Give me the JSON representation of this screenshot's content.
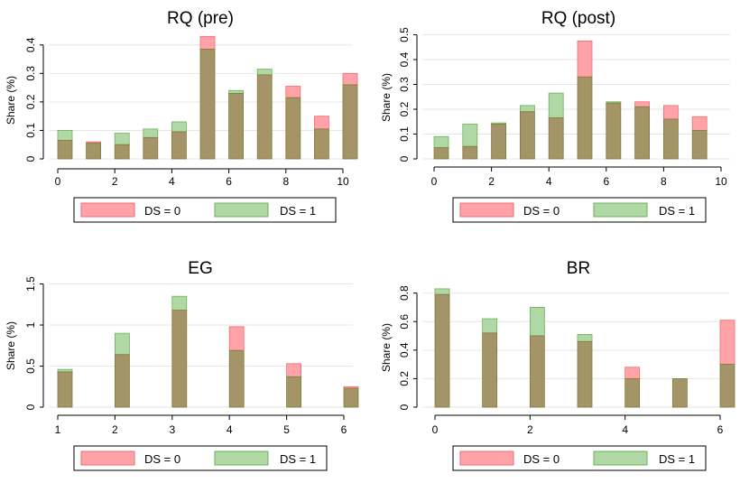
{
  "chart_data": [
    {
      "type": "bar",
      "title": "RQ (pre)",
      "ylabel": "Share (%)",
      "xlabel": "",
      "x": [
        0,
        1,
        2,
        3,
        4,
        5,
        6,
        7,
        8,
        9,
        10
      ],
      "xlim": [
        0,
        10
      ],
      "xticks": [
        0,
        2,
        4,
        6,
        8,
        10
      ],
      "ylim": [
        0,
        0.45
      ],
      "yticks": [
        0,
        0.1,
        0.2,
        0.3,
        0.4
      ],
      "ytick_labels": [
        "0",
        "0.1",
        "0.2",
        "0.3",
        "0.4"
      ],
      "series": [
        {
          "name": "DS = 0",
          "color": "#ffa3a8",
          "values": [
            0.065,
            0.06,
            0.05,
            0.075,
            0.095,
            0.43,
            0.23,
            0.295,
            0.255,
            0.15,
            0.3
          ]
        },
        {
          "name": "DS = 1",
          "color": "#b0d8a4",
          "values": [
            0.1,
            0.055,
            0.09,
            0.105,
            0.13,
            0.385,
            0.24,
            0.315,
            0.215,
            0.105,
            0.26
          ]
        }
      ],
      "legend": "bottom"
    },
    {
      "type": "bar",
      "title": "RQ (post)",
      "ylabel": "Share (%)",
      "xlabel": "",
      "x": [
        0,
        1,
        2,
        3,
        4,
        5,
        6,
        7,
        8,
        9,
        10
      ],
      "xlim": [
        0,
        10
      ],
      "xticks": [
        0,
        2,
        4,
        6,
        8,
        10
      ],
      "ylim": [
        0,
        0.52
      ],
      "yticks": [
        0,
        0.1,
        0.2,
        0.3,
        0.4,
        0.5
      ],
      "ytick_labels": [
        "0",
        "0.1",
        "0.2",
        "0.3",
        "0.4",
        "0.5"
      ],
      "series": [
        {
          "name": "DS = 0",
          "color": "#ffa3a8",
          "values": [
            0.045,
            0.05,
            0.14,
            0.19,
            0.165,
            0.475,
            0.225,
            0.23,
            0.215,
            0.17,
            0.0
          ]
        },
        {
          "name": "DS = 1",
          "color": "#b0d8a4",
          "values": [
            0.09,
            0.14,
            0.145,
            0.215,
            0.265,
            0.33,
            0.23,
            0.21,
            0.16,
            0.115,
            0.0
          ]
        }
      ],
      "legend": "bottom"
    },
    {
      "type": "bar",
      "title": "EG",
      "ylabel": "Share (%)",
      "xlabel": "",
      "x": [
        1,
        2,
        3,
        4,
        5,
        6
      ],
      "xlim": [
        1,
        6
      ],
      "xticks": [
        1,
        2,
        3,
        4,
        5,
        6
      ],
      "ylim": [
        0,
        1.55
      ],
      "yticks": [
        0,
        0.5,
        1,
        1.5
      ],
      "ytick_labels": [
        "0",
        "0.5",
        "1",
        "1.5"
      ],
      "series": [
        {
          "name": "DS = 0",
          "color": "#ffa3a8",
          "values": [
            0.43,
            0.64,
            1.18,
            0.98,
            0.53,
            0.25
          ]
        },
        {
          "name": "DS = 1",
          "color": "#b0d8a4",
          "values": [
            0.46,
            0.9,
            1.35,
            0.69,
            0.37,
            0.23
          ]
        }
      ],
      "legend": "bottom"
    },
    {
      "type": "bar",
      "title": "BR",
      "ylabel": "Share (%)",
      "xlabel": "",
      "x": [
        0,
        1,
        2,
        3,
        4,
        5,
        6
      ],
      "xlim": [
        0,
        6
      ],
      "xticks": [
        0,
        2,
        4,
        6
      ],
      "ylim": [
        0,
        0.88
      ],
      "yticks": [
        0,
        0.2,
        0.4,
        0.6,
        0.8
      ],
      "ytick_labels": [
        "0",
        "0.2",
        "0.4",
        "0.6",
        "0.8"
      ],
      "series": [
        {
          "name": "DS = 0",
          "color": "#ffa3a8",
          "values": [
            0.79,
            0.52,
            0.5,
            0.46,
            0.28,
            0.2,
            0.61
          ]
        },
        {
          "name": "DS = 1",
          "color": "#b0d8a4",
          "values": [
            0.83,
            0.62,
            0.7,
            0.51,
            0.2,
            0.2,
            0.3
          ]
        }
      ],
      "legend": "bottom"
    }
  ],
  "overlap_color": "#a59467",
  "bar_edge_color": "#7f7a3a"
}
